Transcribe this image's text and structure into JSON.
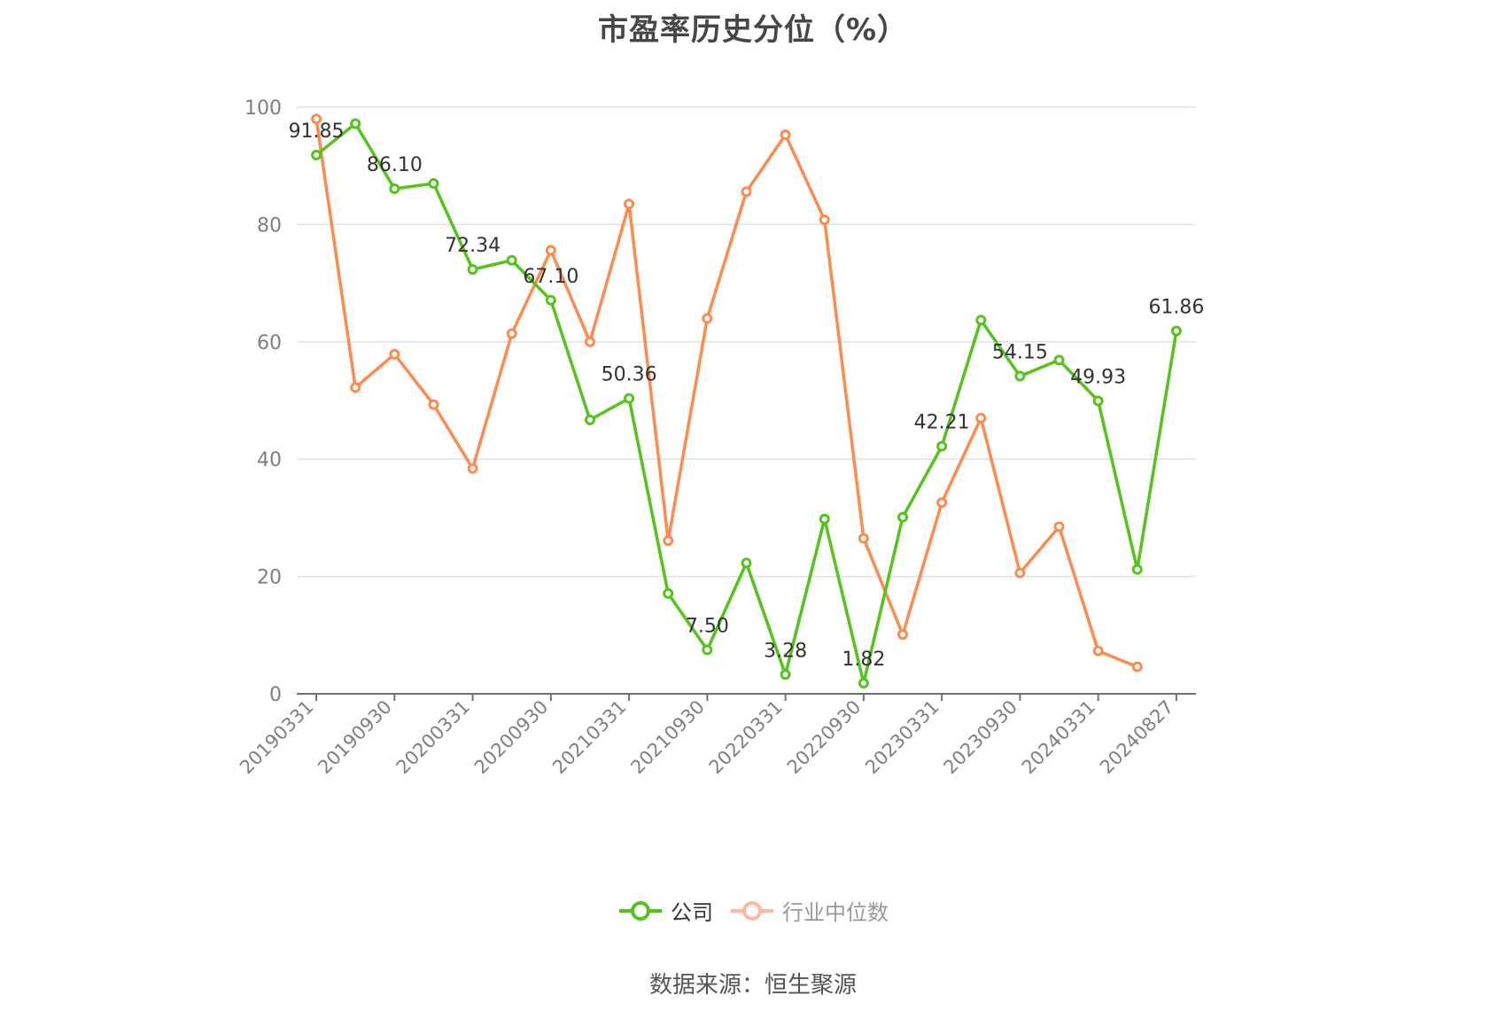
{
  "title": "市盈率历史分位（%）",
  "footer": "数据来源：恒生聚源",
  "legend": {
    "items": [
      {
        "label": "公司",
        "color": "#52C41A",
        "state": "active"
      },
      {
        "label": "行业中位数",
        "color": "#FFB89A",
        "state": "faded"
      }
    ]
  },
  "colors": {
    "company": "#52C41A",
    "industry": "#FF8A50",
    "grid": "#DDE1EE",
    "axis": "#6E7079",
    "tick_label": "#7F7F7F",
    "data_label": "#333333"
  },
  "chart_data": {
    "type": "line",
    "title": "市盈率历史分位（%）",
    "xlabel": "",
    "ylabel": "",
    "ylim": [
      0,
      100
    ],
    "yticks": [
      0,
      20,
      40,
      60,
      80,
      100
    ],
    "grid": true,
    "legend_position": "bottom",
    "x_tick_labels": [
      "20190331",
      "",
      "20190930",
      "",
      "20200331",
      "",
      "20200930",
      "",
      "20210331",
      "",
      "20210930",
      "",
      "20220331",
      "",
      "20220930",
      "",
      "20230331",
      "",
      "20230930",
      "",
      "20240331",
      "",
      "20240827"
    ],
    "series": [
      {
        "name": "公司",
        "color": "#52C41A",
        "values": [
          91.85,
          97.2,
          86.1,
          87.0,
          72.34,
          73.9,
          67.1,
          46.7,
          50.36,
          17.1,
          7.5,
          22.3,
          3.28,
          29.8,
          1.82,
          30.1,
          42.21,
          63.7,
          54.15,
          56.9,
          49.93,
          21.2,
          61.86
        ],
        "data_labels": [
          "91.85",
          "",
          "86.10",
          "",
          "72.34",
          "",
          "67.10",
          "",
          "50.36",
          "",
          "7.50",
          "",
          "3.28",
          "",
          "1.82",
          "",
          "42.21",
          "",
          "54.15",
          "",
          "49.93",
          "",
          "61.86"
        ]
      },
      {
        "name": "行业中位数",
        "color": "#FF8A50",
        "values": [
          98.0,
          52.2,
          57.9,
          49.3,
          38.4,
          61.4,
          75.6,
          60.0,
          83.5,
          26.1,
          64.0,
          85.6,
          95.3,
          80.8,
          26.5,
          10.1,
          32.6,
          47.0,
          20.6,
          28.5,
          7.3,
          4.6,
          null
        ]
      }
    ]
  }
}
